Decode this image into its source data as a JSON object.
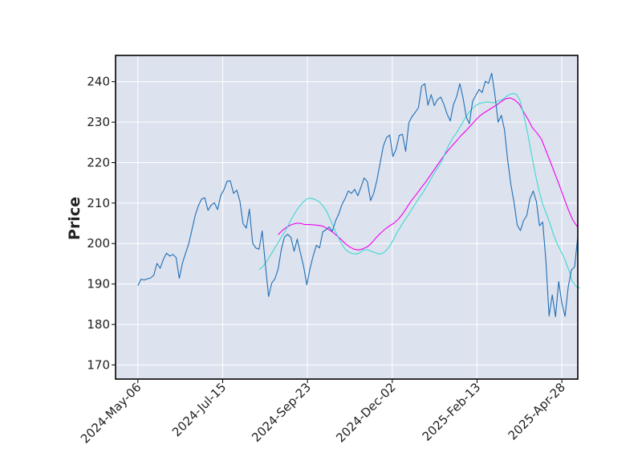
{
  "chart_data": {
    "type": "line",
    "title": "",
    "xlabel": "",
    "ylabel": "Price",
    "x_tick_labels": [
      "2024-May-06",
      "2024-Jul-15",
      "2024-Sep-23",
      "2024-Dec-02",
      "2025-Feb-13",
      "2025-Apr-28"
    ],
    "y_ticks": [
      170,
      180,
      190,
      200,
      210,
      220,
      230,
      240
    ],
    "ylim": [
      166.5,
      246.5
    ],
    "grid": true,
    "legend": "none",
    "colors": {
      "background": "#dde2ef",
      "grid": "#ffffff",
      "price": "#1f6fb5",
      "ma_short": "#3fd9d0",
      "ma_long": "#f000f0"
    },
    "series": [
      {
        "key": "price",
        "values": [
          189.6,
          191.2,
          191.0,
          191.3,
          191.5,
          192.2,
          195.1,
          193.9,
          196.1,
          197.6,
          196.9,
          197.3,
          196.5,
          191.4,
          195.2,
          197.7,
          200.1,
          203.5,
          207.0,
          209.4,
          211.0,
          211.3,
          208.2,
          209.5,
          210.1,
          208.4,
          211.9,
          213.3,
          215.4,
          215.5,
          212.4,
          213.2,
          210.5,
          204.9,
          203.8,
          208.5,
          200.1,
          198.9,
          198.6,
          203.1,
          194.8,
          186.9,
          190.2,
          191.3,
          193.7,
          198.6,
          201.6,
          202.3,
          201.5,
          198.1,
          201.1,
          197.6,
          194.3,
          189.8,
          193.8,
          197.0,
          199.6,
          198.9,
          202.9,
          203.4,
          204.1,
          203.0,
          205.6,
          207.3,
          209.6,
          211.1,
          213.0,
          212.4,
          213.4,
          211.8,
          214.0,
          216.2,
          215.3,
          210.6,
          212.5,
          215.7,
          219.9,
          224.1,
          226.2,
          226.8,
          221.5,
          223.3,
          226.7,
          227.0,
          222.8,
          229.9,
          231.4,
          232.4,
          233.6,
          238.9,
          239.5,
          234.2,
          236.8,
          234.1,
          235.6,
          236.2,
          234.4,
          232.0,
          230.3,
          234.4,
          236.3,
          239.5,
          236.0,
          231.3,
          229.6,
          235.2,
          236.6,
          238.1,
          237.3,
          240.1,
          239.6,
          242.1,
          236.8,
          230.0,
          231.7,
          228.2,
          220.7,
          214.6,
          210.1,
          204.6,
          203.2,
          205.7,
          206.9,
          211.1,
          213.0,
          210.4,
          204.4,
          205.3,
          195.6,
          182.1,
          187.3,
          181.9,
          190.6,
          185.3,
          182.0,
          189.3,
          193.5,
          194.2,
          201.8
        ],
        "x_start": 0,
        "x_step": 1
      },
      {
        "key": "ma_short",
        "values": [
          193.5,
          194.3,
          195.5,
          197.0,
          198.5,
          200.0,
          201.6,
          203.0,
          204.8,
          206.6,
          208.1,
          209.4,
          210.4,
          211.1,
          211.2,
          210.9,
          210.4,
          209.5,
          208.2,
          206.2,
          204.0,
          202.0,
          200.2,
          198.7,
          197.9,
          197.5,
          197.4,
          197.7,
          198.4,
          198.5,
          198.1,
          197.8,
          197.4,
          197.5,
          198.2,
          199.3,
          200.9,
          202.7,
          204.2,
          205.7,
          207.0,
          208.5,
          210.0,
          211.4,
          212.7,
          214.2,
          215.8,
          217.5,
          218.8,
          220.3,
          222.6,
          224.5,
          226.2,
          227.4,
          229.0,
          230.6,
          232.0,
          233.2,
          234.0,
          234.6,
          234.8,
          235.0,
          234.9,
          234.8,
          235.2,
          235.5,
          236.1,
          236.8,
          237.1,
          236.9,
          235.3,
          231.7,
          227.4,
          222.4,
          217.6,
          213.4,
          209.9,
          207.5,
          205.0,
          202.1,
          199.8,
          198.0,
          196.1,
          193.6,
          190.6,
          189.4,
          189.0
        ],
        "x_start": 38,
        "x_step": 1.17
      },
      {
        "key": "ma_long",
        "values": [
          202.2,
          203.3,
          204.1,
          204.7,
          205.0,
          205.0,
          204.7,
          204.7,
          204.6,
          204.5,
          204.3,
          203.7,
          203.0,
          202.1,
          201.1,
          200.0,
          199.2,
          198.6,
          198.4,
          198.7,
          199.2,
          200.2,
          201.5,
          202.6,
          203.6,
          204.4,
          205.1,
          206.1,
          207.5,
          209.2,
          210.8,
          212.2,
          213.7,
          215.1,
          216.7,
          218.3,
          219.9,
          221.5,
          222.9,
          224.2,
          225.4,
          226.7,
          227.8,
          229.0,
          230.2,
          231.4,
          232.2,
          232.9,
          233.6,
          234.3,
          235.1,
          235.8,
          236.0,
          235.5,
          234.5,
          232.5,
          230.7,
          228.6,
          227.3,
          225.8,
          223.0,
          220.2,
          217.3,
          214.4,
          211.4,
          208.4,
          205.9,
          204.2
        ],
        "x_start": 44,
        "x_step": 1.4
      }
    ],
    "x_range": [
      -7,
      138
    ]
  }
}
